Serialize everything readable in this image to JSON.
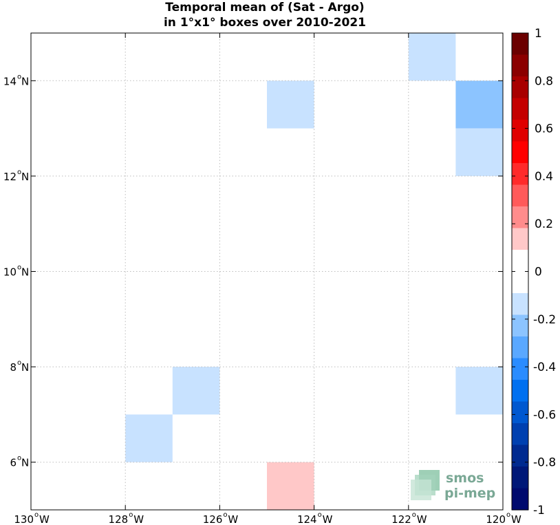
{
  "chart_data": {
    "type": "heatmap",
    "title_lines": [
      "Temporal mean of (Sat - Argo)",
      "in 1°x1° boxes over 2010-2021"
    ],
    "xlim": [
      -130,
      -120
    ],
    "ylim": [
      5,
      15
    ],
    "x_ticks": [
      {
        "value": -130,
        "deg": "130",
        "hem": "W"
      },
      {
        "value": -128,
        "deg": "128",
        "hem": "W"
      },
      {
        "value": -126,
        "deg": "126",
        "hem": "W"
      },
      {
        "value": -124,
        "deg": "124",
        "hem": "W"
      },
      {
        "value": -122,
        "deg": "122",
        "hem": "W"
      },
      {
        "value": -120,
        "deg": "120",
        "hem": "W"
      }
    ],
    "y_ticks": [
      {
        "value": 6,
        "deg": "6",
        "hem": "N"
      },
      {
        "value": 8,
        "deg": "8",
        "hem": "N"
      },
      {
        "value": 10,
        "deg": "10",
        "hem": "N"
      },
      {
        "value": 12,
        "deg": "12",
        "hem": "N"
      },
      {
        "value": 14,
        "deg": "14",
        "hem": "N"
      }
    ],
    "grid": true,
    "cells": [
      {
        "lon": [
          -122,
          -121
        ],
        "lat": [
          14,
          15
        ],
        "value": -0.15
      },
      {
        "lon": [
          -125,
          -124
        ],
        "lat": [
          13,
          14
        ],
        "value": -0.15
      },
      {
        "lon": [
          -121,
          -120
        ],
        "lat": [
          13,
          14
        ],
        "value": -0.25
      },
      {
        "lon": [
          -121,
          -120
        ],
        "lat": [
          12,
          13
        ],
        "value": -0.15
      },
      {
        "lon": [
          -127,
          -126
        ],
        "lat": [
          7,
          8
        ],
        "value": -0.15
      },
      {
        "lon": [
          -121,
          -120
        ],
        "lat": [
          7,
          8
        ],
        "value": -0.15
      },
      {
        "lon": [
          -128,
          -127
        ],
        "lat": [
          6,
          7
        ],
        "value": -0.15
      },
      {
        "lon": [
          -125,
          -124
        ],
        "lat": [
          5,
          6
        ],
        "value": 0.15
      }
    ],
    "colorbar": {
      "range": [
        -1,
        1
      ],
      "ticks": [
        "1",
        "0.8",
        "0.6",
        "0.4",
        "0.2",
        "0",
        "-0.2",
        "-0.4",
        "-0.6",
        "-0.8",
        "-1"
      ],
      "tick_values": [
        1,
        0.8,
        0.6,
        0.4,
        0.2,
        0,
        -0.2,
        -0.4,
        -0.6,
        -0.8,
        -1
      ],
      "colors_top_to_bottom": [
        "#6b0000",
        "#8b0000",
        "#a80000",
        "#c40000",
        "#e00000",
        "#ff0000",
        "#ff2a2a",
        "#ff5a5a",
        "#ff8c8c",
        "#ffc8c8",
        "#ffffff",
        "#ffffff",
        "#c8e2ff",
        "#8cc4ff",
        "#5aa8ff",
        "#2a8cff",
        "#0070f0",
        "#0058d0",
        "#0040b0",
        "#002a90",
        "#001878",
        "#000a6e"
      ]
    }
  },
  "watermark": {
    "line1": "smos",
    "line2": "pi-mep"
  }
}
